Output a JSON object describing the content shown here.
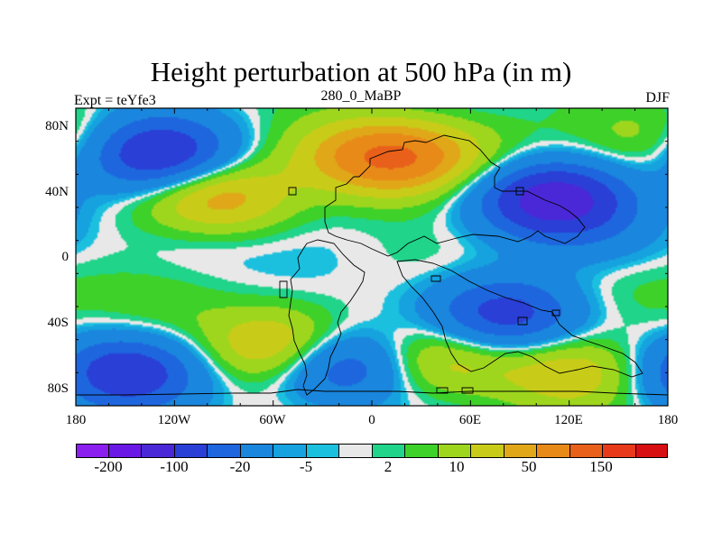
{
  "title": "Height perturbation at 500 hPa (in m)",
  "subtitle_left": "Expt = teYfe3",
  "subtitle_center": "280_0_MaBP",
  "subtitle_right": "DJF",
  "y_labels": [
    "80N",
    "40N",
    "0",
    "40S",
    "80S"
  ],
  "x_labels": [
    "180",
    "120W",
    "60W",
    "0",
    "60E",
    "120E",
    "180"
  ],
  "colorbar": {
    "colors": [
      "#8a1ff0",
      "#6a18e6",
      "#4a28d8",
      "#2a3fd6",
      "#1e66de",
      "#1a86dd",
      "#16a2df",
      "#1cc0df",
      "#e8e8e8",
      "#20d48a",
      "#3ed12a",
      "#9ed61e",
      "#c8cc18",
      "#e0a818",
      "#e88a18",
      "#e8601a",
      "#e83a1a",
      "#d80f12"
    ],
    "tick_labels": [
      "-200",
      "-100",
      "-20",
      "-5",
      "2",
      "10",
      "50",
      "150"
    ]
  },
  "chart_data": {
    "type": "heatmap",
    "title": "Height perturbation at 500 hPa (in m)",
    "experiment": "Expt = teYfe3",
    "period": "280_0_MaBP",
    "season": "DJF",
    "x_range": [
      -180,
      180
    ],
    "y_range": [
      -90,
      90
    ],
    "levels": [
      -200,
      -100,
      -20,
      -5,
      2,
      10,
      50,
      150
    ],
    "anomalies": [
      {
        "lon": -130,
        "lat": 62,
        "value": -160
      },
      {
        "lon": -95,
        "lat": 36,
        "value": 110
      },
      {
        "lon": -15,
        "lat": 62,
        "value": 40
      },
      {
        "lon": 15,
        "lat": 60,
        "value": 130
      },
      {
        "lon": 110,
        "lat": 35,
        "value": -190
      },
      {
        "lon": 175,
        "lat": 70,
        "value": 40
      },
      {
        "lon": 60,
        "lat": 62,
        "value": 30
      },
      {
        "lon": -110,
        "lat": 12,
        "value": -20
      },
      {
        "lon": 140,
        "lat": 12,
        "value": -20
      },
      {
        "lon": 80,
        "lat": -35,
        "value": -130
      },
      {
        "lon": -150,
        "lat": -70,
        "value": -140
      },
      {
        "lon": -20,
        "lat": -65,
        "value": -130
      },
      {
        "lon": -55,
        "lat": -55,
        "value": 110
      },
      {
        "lon": 40,
        "lat": -62,
        "value": 80
      },
      {
        "lon": 120,
        "lat": -70,
        "value": 70
      },
      {
        "lon": -130,
        "lat": -35,
        "value": 20
      },
      {
        "lon": 150,
        "lat": -20,
        "value": 20
      }
    ]
  }
}
